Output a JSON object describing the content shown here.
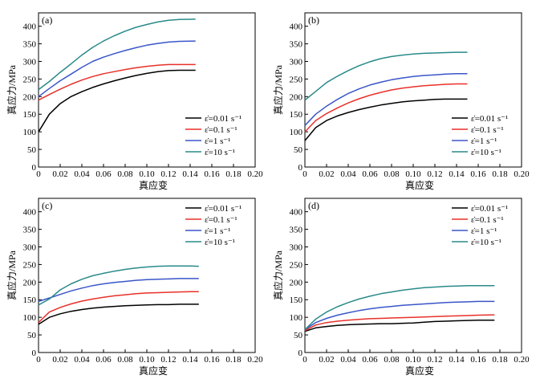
{
  "figure": {
    "xlabel": "真应变",
    "ylabel": "真应力/MPa",
    "legend_labels": [
      "ε̇=0.01 s⁻¹",
      "ε̇=0.1 s⁻¹",
      "ε̇=1 s⁻¹",
      "ε̇=10 s⁻¹"
    ],
    "series_colors": [
      "#000000",
      "#e8312a",
      "#3a56c8",
      "#2a8a8a"
    ]
  },
  "chart_data": [
    {
      "type": "line",
      "panel_label": "(a)",
      "xlabel": "真应变",
      "ylabel": "真应力/MPa",
      "xlim": [
        0,
        0.2
      ],
      "ylim": [
        0,
        420
      ],
      "xticks": [
        "0",
        "0.02",
        "0.04",
        "0.06",
        "0.08",
        "0.10",
        "0.12",
        "0.14",
        "0.16",
        "0.18",
        "0.20"
      ],
      "yticks": [
        "0",
        "50",
        "100",
        "150",
        "200",
        "250",
        "300",
        "350",
        "400"
      ],
      "legend": "bottom-right",
      "grid": false,
      "x": [
        0,
        0.01,
        0.02,
        0.03,
        0.04,
        0.05,
        0.06,
        0.07,
        0.08,
        0.09,
        0.1,
        0.11,
        0.12,
        0.13,
        0.145
      ],
      "series": [
        {
          "name": "ε̇=0.01 s⁻¹",
          "values": [
            100,
            150,
            180,
            200,
            214,
            226,
            236,
            245,
            253,
            260,
            266,
            271,
            274,
            275,
            275
          ]
        },
        {
          "name": "ε̇=0.1 s⁻¹",
          "values": [
            190,
            206,
            221,
            235,
            247,
            257,
            265,
            271,
            277,
            282,
            286,
            289,
            291,
            291,
            291
          ]
        },
        {
          "name": "ε̇=1 s⁻¹",
          "values": [
            200,
            223,
            245,
            264,
            283,
            300,
            312,
            322,
            331,
            339,
            346,
            351,
            355,
            357,
            358
          ]
        },
        {
          "name": "ε̇=10 s⁻¹",
          "values": [
            220,
            243,
            269,
            293,
            318,
            340,
            358,
            373,
            386,
            397,
            405,
            412,
            417,
            419,
            420
          ]
        }
      ]
    },
    {
      "type": "line",
      "panel_label": "(b)",
      "xlabel": "真应变",
      "ylabel": "真应力/MPa",
      "xlim": [
        0,
        0.2
      ],
      "ylim": [
        0,
        420
      ],
      "xticks": [
        "0",
        "0.02",
        "0.04",
        "0.06",
        "0.08",
        "0.10",
        "0.12",
        "0.14",
        "0.16",
        "0.18",
        "0.20"
      ],
      "yticks": [
        "0",
        "50",
        "100",
        "150",
        "200",
        "250",
        "300",
        "350",
        "400"
      ],
      "legend": "bottom-right",
      "grid": false,
      "x": [
        0,
        0.01,
        0.02,
        0.03,
        0.04,
        0.05,
        0.06,
        0.07,
        0.08,
        0.09,
        0.1,
        0.11,
        0.12,
        0.13,
        0.14,
        0.15
      ],
      "series": [
        {
          "name": "ε̇=0.01 s⁻¹",
          "values": [
            75,
            112,
            132,
            145,
            155,
            163,
            170,
            176,
            181,
            185,
            188,
            190,
            192,
            193,
            193,
            193
          ]
        },
        {
          "name": "ε̇=0.1 s⁻¹",
          "values": [
            100,
            132,
            152,
            168,
            182,
            194,
            204,
            212,
            219,
            224,
            228,
            231,
            233,
            235,
            236,
            236
          ]
        },
        {
          "name": "ε̇=1 s⁻¹",
          "values": [
            118,
            150,
            173,
            192,
            209,
            222,
            233,
            241,
            248,
            253,
            257,
            260,
            262,
            264,
            265,
            265
          ]
        },
        {
          "name": "ε̇=10 s⁻¹",
          "values": [
            190,
            215,
            240,
            258,
            274,
            288,
            299,
            308,
            314,
            318,
            321,
            323,
            324,
            325,
            326,
            326
          ]
        }
      ]
    },
    {
      "type": "line",
      "panel_label": "(c)",
      "xlabel": "真应变",
      "ylabel": "真应力/MPa",
      "xlim": [
        0,
        0.2
      ],
      "ylim": [
        0,
        420
      ],
      "xticks": [
        "0",
        "0.02",
        "0.04",
        "0.06",
        "0.08",
        "0.10",
        "0.12",
        "0.14",
        "0.16",
        "0.18",
        "0.20"
      ],
      "yticks": [
        "0",
        "50",
        "100",
        "150",
        "200",
        "250",
        "300",
        "350",
        "400"
      ],
      "legend": "top-right",
      "grid": false,
      "x": [
        0,
        0.01,
        0.02,
        0.03,
        0.04,
        0.05,
        0.06,
        0.07,
        0.08,
        0.09,
        0.1,
        0.11,
        0.12,
        0.13,
        0.14,
        0.148
      ],
      "series": [
        {
          "name": "ε̇=0.01 s⁻¹",
          "values": [
            80,
            100,
            110,
            117,
            122,
            126,
            129,
            131,
            133,
            134,
            135,
            136,
            136,
            137,
            137,
            137
          ]
        },
        {
          "name": "ε̇=0.1 s⁻¹",
          "values": [
            85,
            115,
            128,
            138,
            146,
            152,
            157,
            161,
            164,
            167,
            169,
            170,
            171,
            172,
            173,
            173
          ]
        },
        {
          "name": "ε̇=1 s⁻¹",
          "values": [
            145,
            155,
            165,
            175,
            183,
            190,
            195,
            199,
            202,
            205,
            207,
            208,
            209,
            210,
            210,
            210
          ]
        },
        {
          "name": "ε̇=10 s⁻¹",
          "values": [
            135,
            152,
            178,
            195,
            208,
            218,
            225,
            231,
            236,
            240,
            243,
            245,
            246,
            246,
            246,
            245
          ]
        }
      ]
    },
    {
      "type": "line",
      "panel_label": "(d)",
      "xlabel": "真应变",
      "ylabel": "真应力/MPa",
      "xlim": [
        0,
        0.2
      ],
      "ylim": [
        0,
        420
      ],
      "xticks": [
        "0",
        "0.02",
        "0.04",
        "0.06",
        "0.08",
        "0.10",
        "0.12",
        "0.14",
        "0.16",
        "0.18",
        "0.20"
      ],
      "yticks": [
        "0",
        "50",
        "100",
        "150",
        "200",
        "250",
        "300",
        "350",
        "400"
      ],
      "legend": "top-right",
      "grid": false,
      "x": [
        0,
        0.01,
        0.02,
        0.03,
        0.04,
        0.05,
        0.06,
        0.07,
        0.08,
        0.09,
        0.1,
        0.11,
        0.12,
        0.13,
        0.14,
        0.15,
        0.16,
        0.175
      ],
      "series": [
        {
          "name": "ε̇=0.01 s⁻¹",
          "values": [
            60,
            70,
            74,
            77,
            79,
            80,
            81,
            82,
            82,
            83,
            84,
            86,
            88,
            89,
            90,
            91,
            92,
            92
          ]
        },
        {
          "name": "ε̇=0.1 s⁻¹",
          "values": [
            62,
            78,
            85,
            89,
            92,
            94,
            96,
            97,
            98,
            99,
            100,
            101,
            102,
            103,
            104,
            105,
            106,
            107
          ]
        },
        {
          "name": "ε̇=1 s⁻¹",
          "values": [
            65,
            85,
            97,
            106,
            113,
            119,
            124,
            128,
            131,
            134,
            136,
            138,
            140,
            142,
            143,
            144,
            145,
            145
          ]
        },
        {
          "name": "ε̇=10 s⁻¹",
          "values": [
            65,
            95,
            115,
            130,
            142,
            152,
            160,
            167,
            172,
            177,
            181,
            184,
            186,
            188,
            189,
            190,
            190,
            190
          ]
        }
      ]
    }
  ]
}
